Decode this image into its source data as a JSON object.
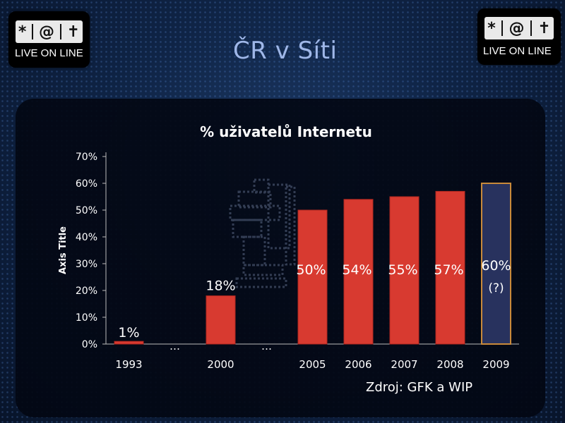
{
  "slide": {
    "title": "ČR v Síti",
    "source": "Zdroj: GFK a WIP"
  },
  "logo_left": {
    "glyphs": [
      "*",
      "@",
      "✝"
    ],
    "text": "LIVE ON LINE"
  },
  "logo_right": {
    "glyphs": [
      "*",
      "@",
      "✝"
    ],
    "text": "LIVE ON LINE"
  },
  "chart_data": {
    "type": "bar",
    "title": "% uživatelů Internetu",
    "ylabel": "Axis Title",
    "xlabel": "",
    "ylim": [
      0,
      70
    ],
    "ytick_values": [
      0,
      10,
      20,
      30,
      40,
      50,
      60,
      70
    ],
    "ytick_labels": [
      "0%",
      "10%",
      "20%",
      "30%",
      "40%",
      "50%",
      "60%",
      "70%"
    ],
    "categories": [
      "1993",
      "",
      "2000",
      "",
      "2005",
      "2006",
      "2007",
      "2008",
      "2009"
    ],
    "values": [
      1,
      null,
      18,
      null,
      50,
      54,
      55,
      57,
      60
    ],
    "data_labels": [
      "1%",
      "…",
      "18%",
      "…",
      "50%",
      "54%",
      "55%",
      "57%",
      "60%"
    ],
    "extra_annotation": "(?)",
    "bar_colors": [
      "#d83a30",
      null,
      "#d83a30",
      null,
      "#d83a30",
      "#d83a30",
      "#d83a30",
      "#d83a30",
      "#28325e"
    ],
    "highlight_border": "#c98a3a",
    "grid": false
  }
}
